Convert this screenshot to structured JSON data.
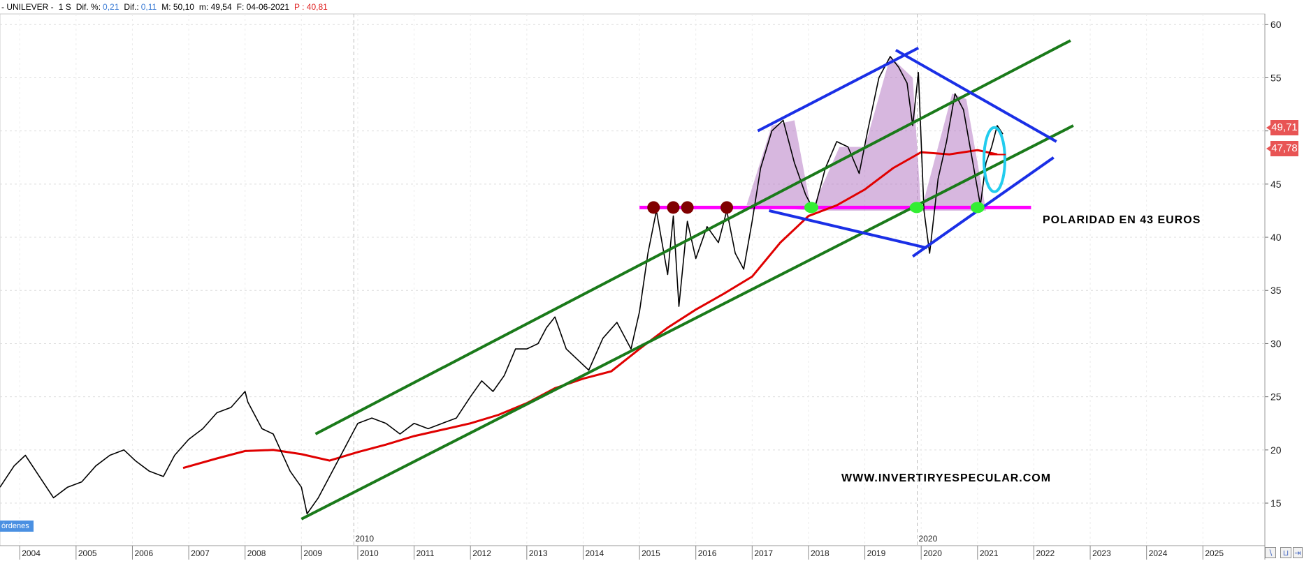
{
  "header": {
    "symbol": "- UNILEVER -",
    "timeframe": "1 S",
    "dif_pct_label": "Dif. %:",
    "dif_pct_value": "0,21",
    "dif_label": "Dif.:",
    "dif_value": "0,11",
    "max": "M: 50,10",
    "min": "m: 49,54",
    "date": "F: 04-06-2021",
    "stop": "P : 40,81"
  },
  "price_tags": {
    "last": "49,71",
    "ma": "47,78"
  },
  "annotations": {
    "polarity": "POLARIDAD EN 43 EUROS",
    "website": "WWW.INVERTIRYESPECULAR.COM"
  },
  "orders_tag": "órdenes",
  "colors": {
    "price": "#000000",
    "moving_average": "#e00000",
    "channel": "#1a7a1a",
    "diamond": "#1a2fe6",
    "polarity_line": "#ff00ff",
    "top_marker": "#800000",
    "support_marker": "#33ee33",
    "ellipse": "#22ccee",
    "zigzag_fill": "#b070c0",
    "price_tag_bg": "#e85454"
  },
  "chart_data": {
    "type": "line",
    "title": "UNILEVER",
    "xlim": [
      2003.65,
      2026.1
    ],
    "ylim": [
      11.0,
      61.0
    ],
    "y_ticks": [
      15,
      20,
      25,
      30,
      35,
      40,
      45,
      50,
      55,
      60
    ],
    "x_ticks": [
      2004,
      2005,
      2006,
      2007,
      2008,
      2009,
      2010,
      2011,
      2012,
      2013,
      2014,
      2015,
      2016,
      2017,
      2018,
      2019,
      2020,
      2021,
      2022,
      2023,
      2024,
      2025
    ],
    "x_tick_labels": [
      "2004",
      "2005",
      "2006",
      "2007",
      "2008",
      "2009",
      "2010",
      "2011",
      "2012",
      "2013",
      "2014",
      "2015",
      "2016",
      "2017",
      "2018",
      "2019",
      "2020",
      "2021",
      "2022",
      "2023",
      "2024",
      "2025"
    ],
    "period_markers": [
      {
        "x": 2009.93,
        "label": "2010"
      },
      {
        "x": 2019.93,
        "label": "2020"
      }
    ],
    "series": [
      {
        "key": "price",
        "x": [
          2003.65,
          2003.9,
          2004.1,
          2004.35,
          2004.6,
          2004.85,
          2005.1,
          2005.35,
          2005.6,
          2005.85,
          2006.05,
          2006.3,
          2006.55,
          2006.75,
          2007.0,
          2007.25,
          2007.5,
          2007.75,
          2008.0,
          2008.05,
          2008.3,
          2008.5,
          2008.8,
          2009.0,
          2009.1,
          2009.3,
          2009.55,
          2009.8,
          2010.0,
          2010.25,
          2010.5,
          2010.75,
          2011.0,
          2011.25,
          2011.5,
          2011.75,
          2012.0,
          2012.2,
          2012.4,
          2012.6,
          2012.8,
          2013.0,
          2013.2,
          2013.35,
          2013.5,
          2013.7,
          2013.9,
          2014.1,
          2014.35,
          2014.6,
          2014.85,
          2015.0,
          2015.15,
          2015.3,
          2015.5,
          2015.6,
          2015.7,
          2015.85,
          2016.0,
          2016.2,
          2016.4,
          2016.55,
          2016.7,
          2016.85,
          2017.0,
          2017.15,
          2017.35,
          2017.55,
          2017.75,
          2017.95,
          2018.1,
          2018.3,
          2018.5,
          2018.7,
          2018.9,
          2019.05,
          2019.25,
          2019.45,
          2019.6,
          2019.75,
          2019.85,
          2019.95,
          2020.05,
          2020.15,
          2020.3,
          2020.45,
          2020.6,
          2020.75,
          2020.9,
          2021.05,
          2021.15,
          2021.25,
          2021.35,
          2021.45
        ],
        "y": [
          16.5,
          18.5,
          19.5,
          17.5,
          15.5,
          16.5,
          17.0,
          18.5,
          19.5,
          20.0,
          19.0,
          18.0,
          17.5,
          19.5,
          21.0,
          22.0,
          23.5,
          24.0,
          25.5,
          24.5,
          22.0,
          21.5,
          18.0,
          16.5,
          14.0,
          15.5,
          18.0,
          20.5,
          22.5,
          23.0,
          22.5,
          21.5,
          22.5,
          22.0,
          22.5,
          23.0,
          25.0,
          26.5,
          25.5,
          27.0,
          29.5,
          29.5,
          30.0,
          31.5,
          32.5,
          29.5,
          28.5,
          27.5,
          30.5,
          32.0,
          29.5,
          33.0,
          38.5,
          42.5,
          36.5,
          42.0,
          33.5,
          41.5,
          38.0,
          41.0,
          39.5,
          42.5,
          38.5,
          37.0,
          41.5,
          46.5,
          50.0,
          51.0,
          47.0,
          44.0,
          42.5,
          46.5,
          49.0,
          48.5,
          46.0,
          50.0,
          55.0,
          57.0,
          56.0,
          54.5,
          50.5,
          55.5,
          42.5,
          38.5,
          45.5,
          49.0,
          53.5,
          52.0,
          47.5,
          43.0,
          47.0,
          48.5,
          50.5,
          49.7
        ]
      },
      {
        "key": "moving_average",
        "x": [
          2006.9,
          2007.5,
          2008.0,
          2008.5,
          2009.0,
          2009.5,
          2010.0,
          2010.5,
          2011.0,
          2011.5,
          2012.0,
          2012.5,
          2013.0,
          2013.5,
          2014.0,
          2014.5,
          2015.0,
          2015.5,
          2016.0,
          2016.5,
          2017.0,
          2017.5,
          2018.0,
          2018.5,
          2019.0,
          2019.5,
          2020.0,
          2020.5,
          2021.0,
          2021.35
        ],
        "y": [
          18.3,
          19.2,
          19.9,
          20.0,
          19.6,
          19.0,
          19.8,
          20.5,
          21.3,
          21.9,
          22.5,
          23.3,
          24.4,
          25.8,
          26.7,
          27.4,
          29.5,
          31.5,
          33.2,
          34.7,
          36.3,
          39.5,
          42.0,
          43.0,
          44.5,
          46.5,
          48.0,
          47.8,
          48.2,
          47.8
        ]
      }
    ]
  }
}
